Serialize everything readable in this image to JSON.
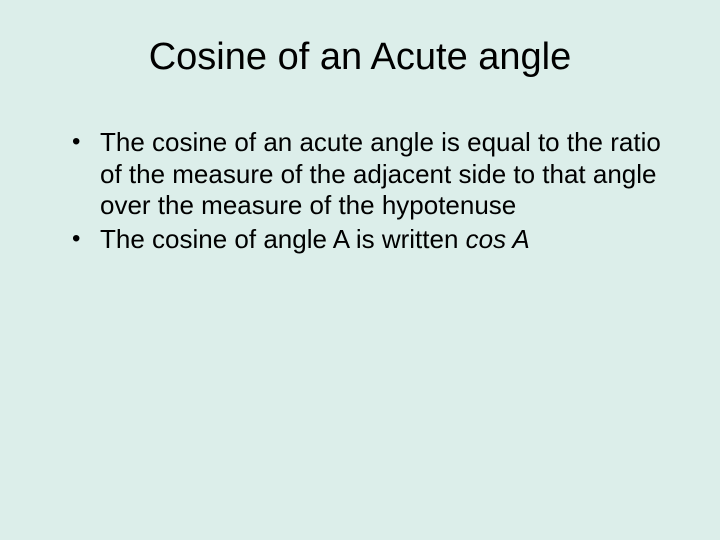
{
  "slide": {
    "background_color": "#dceeea",
    "text_color": "#000000",
    "font_family": "Arial",
    "title": {
      "text": "Cosine of an Acute angle",
      "fontsize": 38,
      "align": "center"
    },
    "bullets": [
      {
        "text": "The cosine of an acute angle is equal to the ratio of the measure of the adjacent side to that angle over the measure of the hypotenuse",
        "fontsize": 26
      },
      {
        "text_prefix": "The cosine of angle A is written ",
        "text_italic": "cos A",
        "fontsize": 26
      }
    ]
  }
}
